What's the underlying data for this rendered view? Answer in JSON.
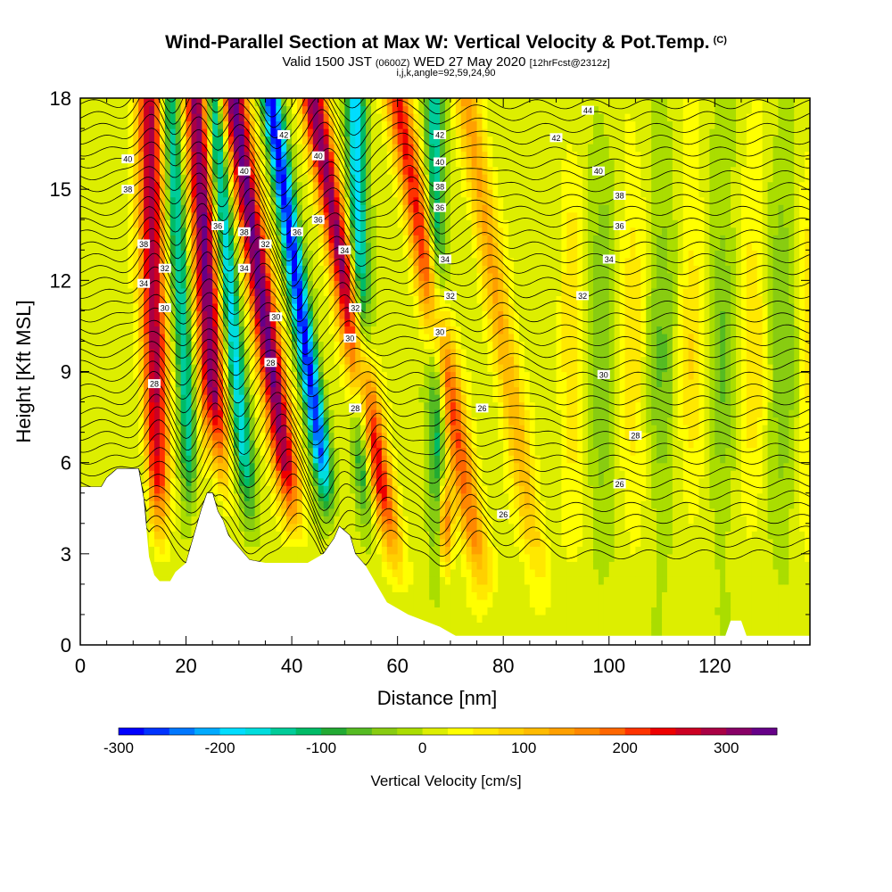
{
  "header": {
    "title": "Wind-Parallel Section at Max W: Vertical Velocity & Pot.Temp.",
    "title_tag": "(C)",
    "valid_prefix": "Valid 1500 JST",
    "valid_utc": "(0600Z)",
    "valid_date": "WED 27 May 2020",
    "forecast": "[12hrFcst@2312z]",
    "params": "i,j,k,angle=92,59,24,90"
  },
  "chart_data": {
    "type": "heatmap",
    "title": "Wind-Parallel Section at Max W: Vertical Velocity & Pot.Temp.",
    "xlabel": "Distance [nm]",
    "ylabel": "Height [Kft MSL]",
    "xlim": [
      0,
      138
    ],
    "ylim": [
      0,
      18
    ],
    "x_ticks": [
      0,
      20,
      40,
      60,
      80,
      100,
      120
    ],
    "y_ticks": [
      0,
      3,
      6,
      9,
      12,
      15,
      18
    ],
    "colorbar": {
      "label": "Vertical Velocity [cm/s]",
      "min": -300,
      "max": 350,
      "step": 25,
      "tick_values": [
        -300,
        -200,
        -100,
        0,
        100,
        200,
        300
      ],
      "tick_labels": [
        "-300",
        "-200",
        "-100",
        "0",
        "100",
        "200",
        "300"
      ],
      "colors": [
        "#0000ff",
        "#0033ff",
        "#0077ff",
        "#00aaff",
        "#00ddff",
        "#00dddd",
        "#00cc99",
        "#00bb66",
        "#22aa33",
        "#55bb22",
        "#88cc11",
        "#aadd00",
        "#ddee00",
        "#ffff00",
        "#ffe800",
        "#ffd000",
        "#ffbb00",
        "#ffa000",
        "#ff8800",
        "#ff6600",
        "#ff3300",
        "#ee0000",
        "#cc0022",
        "#aa0044",
        "#880066",
        "#660088"
      ]
    },
    "features": {
      "updrafts": [
        {
          "base_x": 15,
          "top_x": 13,
          "peak": 280
        },
        {
          "base_x": 27,
          "top_x": 22,
          "peak": 320
        },
        {
          "base_x": 42,
          "top_x": 29,
          "peak": 330
        },
        {
          "base_x": 60,
          "top_x": 44,
          "peak": 300
        },
        {
          "base_x": 76,
          "top_x": 60,
          "peak": 220
        },
        {
          "base_x": 87,
          "top_x": 73,
          "peak": 120
        }
      ],
      "downdrafts": [
        {
          "base_x": 22,
          "top_x": 17,
          "peak": -160
        },
        {
          "base_x": 33,
          "top_x": 25,
          "peak": -200
        },
        {
          "base_x": 49,
          "top_x": 36,
          "peak": -300
        },
        {
          "base_x": 54,
          "top_x": 52,
          "peak": -200
        },
        {
          "base_x": 68,
          "top_x": 67,
          "peak": -150
        }
      ],
      "low_updraft": {
        "x": 69,
        "y": 4,
        "peak": 220
      }
    },
    "terrain_kft": [
      [
        0,
        5.2
      ],
      [
        4,
        5.2
      ],
      [
        5,
        5.5
      ],
      [
        7,
        5.8
      ],
      [
        11,
        5.8
      ],
      [
        12,
        4.8
      ],
      [
        13,
        2.9
      ],
      [
        14,
        2.3
      ],
      [
        15,
        2.1
      ],
      [
        17,
        2.1
      ],
      [
        18,
        2.4
      ],
      [
        20,
        2.7
      ],
      [
        21,
        3.3
      ],
      [
        22,
        3.9
      ],
      [
        23,
        4.5
      ],
      [
        24,
        5.0
      ],
      [
        25,
        5.0
      ],
      [
        26,
        4.4
      ],
      [
        27,
        4.1
      ],
      [
        28,
        3.6
      ],
      [
        30,
        3.2
      ],
      [
        32,
        2.8
      ],
      [
        35,
        2.7
      ],
      [
        43,
        2.7
      ],
      [
        46,
        3.0
      ],
      [
        48,
        3.5
      ],
      [
        49,
        3.9
      ],
      [
        51,
        3.6
      ],
      [
        52,
        3.0
      ],
      [
        54,
        2.6
      ],
      [
        56,
        2.0
      ],
      [
        58,
        1.4
      ],
      [
        62,
        1.0
      ],
      [
        65,
        0.8
      ],
      [
        68,
        0.6
      ],
      [
        71,
        0.3
      ],
      [
        122,
        0.3
      ],
      [
        123,
        0.8
      ],
      [
        125,
        0.8
      ],
      [
        126,
        0.3
      ],
      [
        138,
        0.3
      ]
    ],
    "isentropes": {
      "levels": [
        26,
        28,
        30,
        32,
        34,
        36,
        38,
        40,
        42,
        44
      ],
      "units": "C",
      "labels": [
        {
          "text": "44",
          "x": 96,
          "y": 17.6
        },
        {
          "text": "42",
          "x": 38.5,
          "y": 16.8
        },
        {
          "text": "42",
          "x": 68,
          "y": 16.8
        },
        {
          "text": "42",
          "x": 90,
          "y": 16.7
        },
        {
          "text": "40",
          "x": 9,
          "y": 16.0
        },
        {
          "text": "40",
          "x": 31,
          "y": 15.6
        },
        {
          "text": "40",
          "x": 45,
          "y": 16.1
        },
        {
          "text": "40",
          "x": 68,
          "y": 15.9
        },
        {
          "text": "40",
          "x": 98,
          "y": 15.6
        },
        {
          "text": "38",
          "x": 9,
          "y": 15.0
        },
        {
          "text": "38",
          "x": 68,
          "y": 15.1
        },
        {
          "text": "38",
          "x": 102,
          "y": 14.8
        },
        {
          "text": "36",
          "x": 68,
          "y": 14.4
        },
        {
          "text": "36",
          "x": 45,
          "y": 14.0
        },
        {
          "text": "36",
          "x": 102,
          "y": 13.8
        },
        {
          "text": "36",
          "x": 26,
          "y": 13.8
        },
        {
          "text": "36",
          "x": 41,
          "y": 13.6
        },
        {
          "text": "38",
          "x": 31,
          "y": 13.6
        },
        {
          "text": "38",
          "x": 12,
          "y": 13.2
        },
        {
          "text": "32",
          "x": 35,
          "y": 13.2
        },
        {
          "text": "34",
          "x": 50,
          "y": 13.0
        },
        {
          "text": "34",
          "x": 69,
          "y": 12.7
        },
        {
          "text": "34",
          "x": 100,
          "y": 12.7
        },
        {
          "text": "32",
          "x": 16,
          "y": 12.4
        },
        {
          "text": "34",
          "x": 31,
          "y": 12.4
        },
        {
          "text": "34",
          "x": 12,
          "y": 11.9
        },
        {
          "text": "32",
          "x": 70,
          "y": 11.5
        },
        {
          "text": "32",
          "x": 95,
          "y": 11.5
        },
        {
          "text": "30",
          "x": 16,
          "y": 11.1
        },
        {
          "text": "32",
          "x": 52,
          "y": 11.1
        },
        {
          "text": "30",
          "x": 37,
          "y": 10.8
        },
        {
          "text": "30",
          "x": 51,
          "y": 10.1
        },
        {
          "text": "30",
          "x": 68,
          "y": 10.3
        },
        {
          "text": "28",
          "x": 36,
          "y": 9.3
        },
        {
          "text": "30",
          "x": 99,
          "y": 8.9
        },
        {
          "text": "28",
          "x": 14,
          "y": 8.6
        },
        {
          "text": "28",
          "x": 52,
          "y": 7.8
        },
        {
          "text": "26",
          "x": 76,
          "y": 7.8
        },
        {
          "text": "28",
          "x": 105,
          "y": 6.9
        },
        {
          "text": "26",
          "x": 102,
          "y": 5.3
        },
        {
          "text": "26",
          "x": 80,
          "y": 4.3
        }
      ]
    }
  }
}
